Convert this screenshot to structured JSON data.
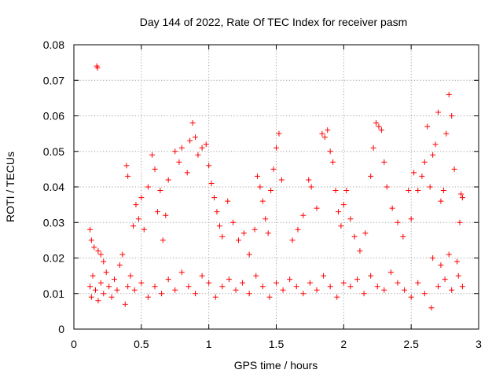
{
  "chart_data": {
    "type": "scatter",
    "title": "Day 144 of 2022, Rate Of TEC Index for receiver pasm",
    "xlabel": "GPS time / hours",
    "ylabel": "ROTI / TECUs",
    "xlim": [
      0,
      3
    ],
    "ylim": [
      0,
      0.08
    ],
    "xticks": [
      0,
      0.5,
      1,
      1.5,
      2,
      2.5,
      3
    ],
    "xtick_labels": [
      "0",
      "0.5",
      "1",
      "1.5",
      "2",
      "2.5",
      "3"
    ],
    "yticks": [
      0,
      0.01,
      0.02,
      0.03,
      0.04,
      0.05,
      0.06,
      0.07,
      0.08
    ],
    "ytick_labels": [
      "0",
      "0.01",
      "0.02",
      "0.03",
      "0.04",
      "0.05",
      "0.06",
      "0.07",
      "0.08"
    ],
    "grid": true,
    "marker": "plus",
    "color": "#ff0000",
    "points": [
      [
        0.12,
        0.028
      ],
      [
        0.13,
        0.025
      ],
      [
        0.15,
        0.023
      ],
      [
        0.17,
        0.074
      ],
      [
        0.175,
        0.0735
      ],
      [
        0.18,
        0.022
      ],
      [
        0.2,
        0.021
      ],
      [
        0.22,
        0.019
      ],
      [
        0.12,
        0.012
      ],
      [
        0.13,
        0.009
      ],
      [
        0.14,
        0.015
      ],
      [
        0.16,
        0.011
      ],
      [
        0.18,
        0.008
      ],
      [
        0.2,
        0.013
      ],
      [
        0.22,
        0.01
      ],
      [
        0.24,
        0.016
      ],
      [
        0.26,
        0.012
      ],
      [
        0.28,
        0.009
      ],
      [
        0.3,
        0.014
      ],
      [
        0.32,
        0.011
      ],
      [
        0.34,
        0.018
      ],
      [
        0.36,
        0.021
      ],
      [
        0.38,
        0.007
      ],
      [
        0.4,
        0.012
      ],
      [
        0.39,
        0.046
      ],
      [
        0.4,
        0.043
      ],
      [
        0.42,
        0.015
      ],
      [
        0.44,
        0.029
      ],
      [
        0.46,
        0.035
      ],
      [
        0.48,
        0.031
      ],
      [
        0.5,
        0.037
      ],
      [
        0.52,
        0.028
      ],
      [
        0.55,
        0.04
      ],
      [
        0.58,
        0.049
      ],
      [
        0.6,
        0.045
      ],
      [
        0.62,
        0.033
      ],
      [
        0.64,
        0.039
      ],
      [
        0.66,
        0.025
      ],
      [
        0.68,
        0.032
      ],
      [
        0.7,
        0.042
      ],
      [
        0.45,
        0.011
      ],
      [
        0.5,
        0.013
      ],
      [
        0.55,
        0.009
      ],
      [
        0.6,
        0.012
      ],
      [
        0.65,
        0.01
      ],
      [
        0.7,
        0.014
      ],
      [
        0.75,
        0.011
      ],
      [
        0.8,
        0.016
      ],
      [
        0.75,
        0.05
      ],
      [
        0.78,
        0.047
      ],
      [
        0.8,
        0.051
      ],
      [
        0.84,
        0.044
      ],
      [
        0.86,
        0.053
      ],
      [
        0.88,
        0.058
      ],
      [
        0.9,
        0.054
      ],
      [
        0.92,
        0.049
      ],
      [
        0.95,
        0.051
      ],
      [
        0.98,
        0.052
      ],
      [
        1.0,
        0.046
      ],
      [
        1.02,
        0.041
      ],
      [
        1.04,
        0.037
      ],
      [
        1.06,
        0.033
      ],
      [
        1.08,
        0.029
      ],
      [
        1.1,
        0.026
      ],
      [
        0.85,
        0.012
      ],
      [
        0.9,
        0.01
      ],
      [
        0.95,
        0.015
      ],
      [
        1.0,
        0.013
      ],
      [
        1.05,
        0.009
      ],
      [
        1.1,
        0.012
      ],
      [
        1.15,
        0.014
      ],
      [
        1.2,
        0.011
      ],
      [
        1.14,
        0.036
      ],
      [
        1.18,
        0.03
      ],
      [
        1.22,
        0.025
      ],
      [
        1.26,
        0.027
      ],
      [
        1.3,
        0.021
      ],
      [
        1.34,
        0.028
      ],
      [
        1.36,
        0.043
      ],
      [
        1.38,
        0.04
      ],
      [
        1.4,
        0.036
      ],
      [
        1.42,
        0.031
      ],
      [
        1.44,
        0.027
      ],
      [
        1.46,
        0.039
      ],
      [
        1.48,
        0.045
      ],
      [
        1.5,
        0.051
      ],
      [
        1.52,
        0.055
      ],
      [
        1.54,
        0.042
      ],
      [
        1.25,
        0.013
      ],
      [
        1.3,
        0.01
      ],
      [
        1.35,
        0.015
      ],
      [
        1.4,
        0.012
      ],
      [
        1.45,
        0.009
      ],
      [
        1.5,
        0.013
      ],
      [
        1.55,
        0.011
      ],
      [
        1.6,
        0.014
      ],
      [
        1.62,
        0.025
      ],
      [
        1.66,
        0.028
      ],
      [
        1.7,
        0.032
      ],
      [
        1.74,
        0.042
      ],
      [
        1.76,
        0.04
      ],
      [
        1.8,
        0.034
      ],
      [
        1.84,
        0.055
      ],
      [
        1.86,
        0.054
      ],
      [
        1.88,
        0.056
      ],
      [
        1.9,
        0.05
      ],
      [
        1.92,
        0.047
      ],
      [
        1.94,
        0.039
      ],
      [
        1.96,
        0.033
      ],
      [
        1.98,
        0.029
      ],
      [
        2.0,
        0.035
      ],
      [
        2.02,
        0.039
      ],
      [
        1.65,
        0.012
      ],
      [
        1.7,
        0.01
      ],
      [
        1.75,
        0.013
      ],
      [
        1.8,
        0.011
      ],
      [
        1.85,
        0.015
      ],
      [
        1.9,
        0.012
      ],
      [
        1.95,
        0.009
      ],
      [
        2.0,
        0.013
      ],
      [
        2.05,
        0.031
      ],
      [
        2.08,
        0.026
      ],
      [
        2.12,
        0.022
      ],
      [
        2.16,
        0.027
      ],
      [
        2.2,
        0.043
      ],
      [
        2.22,
        0.051
      ],
      [
        2.24,
        0.058
      ],
      [
        2.26,
        0.057
      ],
      [
        2.28,
        0.056
      ],
      [
        2.3,
        0.047
      ],
      [
        2.32,
        0.04
      ],
      [
        2.36,
        0.034
      ],
      [
        2.4,
        0.03
      ],
      [
        2.44,
        0.026
      ],
      [
        2.48,
        0.039
      ],
      [
        2.5,
        0.031
      ],
      [
        2.05,
        0.012
      ],
      [
        2.1,
        0.014
      ],
      [
        2.15,
        0.01
      ],
      [
        2.2,
        0.015
      ],
      [
        2.25,
        0.012
      ],
      [
        2.3,
        0.011
      ],
      [
        2.35,
        0.016
      ],
      [
        2.4,
        0.013
      ],
      [
        2.52,
        0.044
      ],
      [
        2.55,
        0.039
      ],
      [
        2.58,
        0.043
      ],
      [
        2.6,
        0.047
      ],
      [
        2.62,
        0.057
      ],
      [
        2.64,
        0.04
      ],
      [
        2.66,
        0.049
      ],
      [
        2.68,
        0.052
      ],
      [
        2.7,
        0.061
      ],
      [
        2.72,
        0.036
      ],
      [
        2.74,
        0.039
      ],
      [
        2.76,
        0.055
      ],
      [
        2.78,
        0.066
      ],
      [
        2.8,
        0.06
      ],
      [
        2.82,
        0.045
      ],
      [
        2.86,
        0.03
      ],
      [
        2.45,
        0.011
      ],
      [
        2.5,
        0.009
      ],
      [
        2.55,
        0.013
      ],
      [
        2.6,
        0.01
      ],
      [
        2.65,
        0.006
      ],
      [
        2.7,
        0.012
      ],
      [
        2.75,
        0.014
      ],
      [
        2.8,
        0.011
      ],
      [
        2.85,
        0.015
      ],
      [
        2.88,
        0.012
      ],
      [
        2.88,
        0.037
      ],
      [
        2.87,
        0.038
      ],
      [
        2.84,
        0.019
      ],
      [
        2.78,
        0.021
      ],
      [
        2.72,
        0.018
      ],
      [
        2.66,
        0.02
      ]
    ]
  }
}
